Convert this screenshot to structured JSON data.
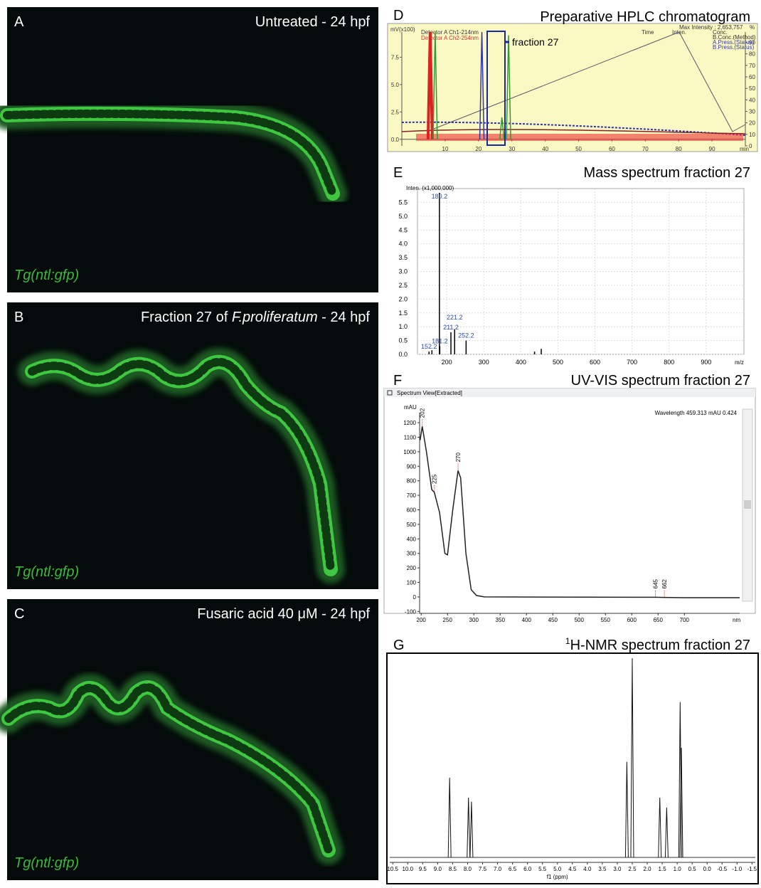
{
  "panels": [
    {
      "letter": "A",
      "title": "Untreated - 24 hpf",
      "label": "Tg(ntl:gfp)"
    },
    {
      "letter": "B",
      "title": [
        "Fraction 27 of ",
        "F.proliferatum",
        " - 24 hpf"
      ],
      "label": "Tg(ntl:gfp)"
    },
    {
      "letter": "C",
      "title": "Fusaric acid 40 μM - 24 hpf",
      "label": "Tg(ntl:gfp)"
    }
  ],
  "hplc": {
    "letter": "D",
    "title": "Preparative HPLC chromatogram",
    "annotation": "fraction 27",
    "y_label": "mV(x100)",
    "x_unit": "min",
    "y2_unit": "%",
    "header": [
      "Detector A Ch1-214nm",
      "Detector A Ch2-254nm",
      "Time",
      "Inten.",
      "Max Intensity : 2,653,757",
      "Conc.",
      "B.Conc.(Method)",
      "A.Press.(Status)",
      "B.Press.(Status)"
    ],
    "xlim": [
      -3,
      100
    ],
    "ylim": [
      -0.6,
      9.8
    ],
    "y2lim": [
      0,
      99
    ],
    "xticks": [
      10,
      20,
      30,
      40,
      50,
      60,
      70,
      80,
      90
    ],
    "yticks": [
      {
        "value": 0,
        "label": "0.0"
      },
      2.5,
      {
        "value": 5,
        "label": "5.0"
      },
      7.5
    ],
    "y2ticks": [
      0,
      10,
      20,
      30,
      40,
      50,
      60,
      70,
      80,
      90
    ],
    "x": [
      5.5,
      7,
      21,
      27,
      29
    ],
    "values": [
      9.8,
      9.8,
      9.8,
      2.0,
      9.5
    ]
  },
  "mass": {
    "letter": "E",
    "title": "Mass spectrum fraction 27",
    "y_label": "Inten. (x1,000,000)",
    "x_unit": "m/z",
    "xlim": [
      121,
      1002
    ],
    "ylim": [
      0,
      6
    ],
    "xticks": [
      200,
      300,
      400,
      500,
      600,
      700,
      800,
      900
    ],
    "yticks": [
      {
        "value": 0,
        "label": "0.0"
      },
      0.5,
      {
        "value": 1,
        "label": "1.0"
      },
      1.5,
      {
        "value": 2,
        "label": "2.0"
      },
      2.5,
      {
        "value": 3,
        "label": "3.0"
      },
      3.5,
      {
        "value": 4,
        "label": "4.0"
      },
      4.5,
      {
        "value": 5,
        "label": "5.0"
      },
      5.5
    ],
    "peaks_x": [
      152.2,
      160,
      180.2,
      181.2,
      211.2,
      221.2,
      252.2,
      437,
      455
    ],
    "peaks_y": [
      0.1,
      0.15,
      5.85,
      0.3,
      0.8,
      0.9,
      0.5,
      0.1,
      0.2
    ],
    "peak_labels": [
      "152.2",
      null,
      "180.2",
      "181.2",
      "211.2",
      "221.2",
      "252.2",
      null,
      null
    ]
  },
  "uv": {
    "letter": "F",
    "title": "UV-VIS spectrum fraction 27",
    "window": "Spectrum View[Extracted]",
    "y_unit": "mAU",
    "x_unit": "nm",
    "readout": "Wavelength  459.313   mAU   0.424",
    "xlim": [
      197,
      805
    ],
    "ylim": [
      -113,
      1269
    ],
    "xticks": [
      200,
      250,
      300,
      350,
      400,
      450,
      500,
      550,
      600,
      650,
      700
    ],
    "yticks": [
      -100,
      0,
      100,
      200,
      300,
      400,
      500,
      600,
      700,
      800,
      900,
      1000,
      1100,
      1200
    ],
    "x": [
      198,
      202,
      210,
      220,
      225,
      235,
      245,
      250,
      260,
      270,
      275,
      285,
      295,
      305,
      320,
      645,
      662,
      700,
      805
    ],
    "values": [
      1080,
      1175,
      1000,
      740,
      720,
      580,
      300,
      290,
      600,
      870,
      820,
      300,
      50,
      10,
      0,
      -2,
      -3,
      -5,
      -5
    ],
    "peak_labels": [
      "202",
      "225",
      "270",
      "645",
      "662"
    ],
    "peak_x": [
      202,
      225,
      270,
      645,
      662
    ],
    "peak_y": [
      1175,
      720,
      870,
      -2,
      -3
    ]
  },
  "nmr": {
    "letter": "G",
    "title_sup": "1",
    "title": "H-NMR spectrum fraction 27",
    "x_label": "f1 (ppm)",
    "xlim": [
      10.6,
      -1.61
    ],
    "ylim": [
      0,
      100
    ],
    "xticks": [
      10.5,
      {
        "value": 10,
        "label": "10.0"
      },
      9.5,
      {
        "value": 9,
        "label": "9.0"
      },
      8.5,
      {
        "value": 8,
        "label": "8.0"
      },
      7.5,
      {
        "value": 7,
        "label": "7.0"
      },
      6.5,
      {
        "value": 6,
        "label": "6.0"
      },
      5.5,
      {
        "value": 5,
        "label": "5.0"
      },
      4.5,
      {
        "value": 4,
        "label": "4.0"
      },
      3.5,
      {
        "value": 3,
        "label": "3.0"
      },
      2.5,
      {
        "value": 2,
        "label": "2.0"
      },
      1.5,
      {
        "value": 1,
        "label": "1.0"
      },
      0.5,
      {
        "value": 0,
        "label": "0.0"
      },
      -0.5,
      {
        "value": -1,
        "label": "-1.0"
      },
      -1.5
    ],
    "peaks_x": [
      8.6,
      7.97,
      7.87,
      2.68,
      2.5,
      1.58,
      1.35,
      0.9,
      0.86
    ],
    "peaks_y": [
      40,
      30,
      28,
      48,
      100,
      30,
      25,
      78,
      55
    ]
  }
}
